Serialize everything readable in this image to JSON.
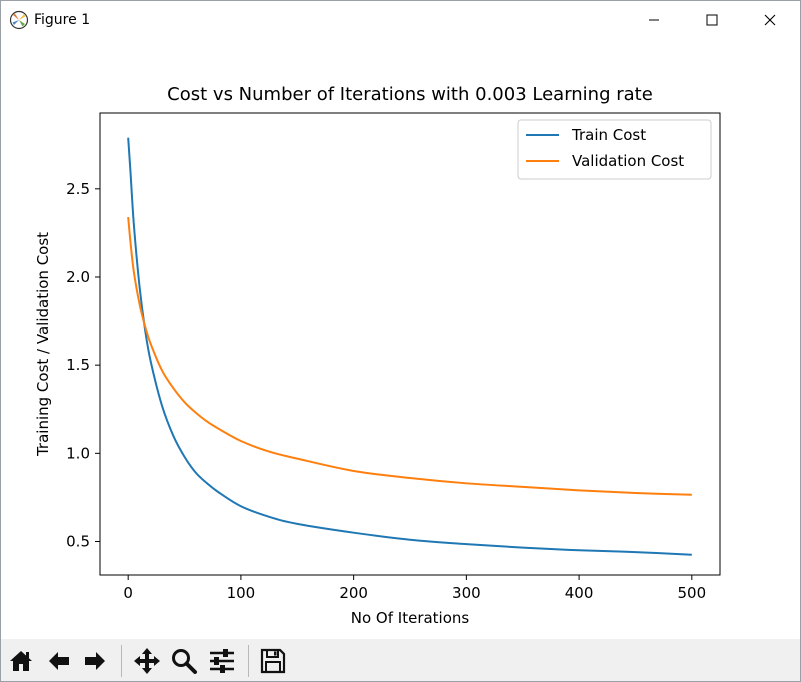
{
  "window": {
    "title": "Figure 1",
    "controls": [
      "minimize-icon",
      "maximize-icon",
      "close-icon"
    ]
  },
  "toolbar": {
    "buttons": [
      "home-icon",
      "back-icon",
      "forward-icon",
      "pan-icon",
      "zoom-icon",
      "configure-subplots-icon",
      "save-icon"
    ]
  },
  "chart_data": {
    "type": "line",
    "title": "Cost vs Number of Iterations with 0.003 Learning rate",
    "xlabel": "No Of Iterations",
    "ylabel": "Training Cost / Validation Cost",
    "xlim": [
      -25,
      525
    ],
    "ylim": [
      0.31,
      2.93
    ],
    "xticks": [
      0,
      100,
      200,
      300,
      400,
      500
    ],
    "xtick_labels": [
      "0",
      "100",
      "200",
      "300",
      "400",
      "500"
    ],
    "yticks": [
      0.5,
      1.0,
      1.5,
      2.0,
      2.5
    ],
    "ytick_labels": [
      "0.5",
      "1.0",
      "1.5",
      "2.0",
      "2.5"
    ],
    "grid": false,
    "legend_position": "top-right",
    "series": [
      {
        "name": "Train Cost",
        "color": "#1f77b4",
        "x": [
          0,
          2,
          5,
          10,
          15,
          20,
          30,
          40,
          50,
          60,
          70,
          80,
          100,
          125,
          150,
          200,
          250,
          300,
          350,
          400,
          450,
          500
        ],
        "y": [
          2.79,
          2.6,
          2.3,
          1.95,
          1.7,
          1.52,
          1.27,
          1.1,
          0.98,
          0.89,
          0.83,
          0.78,
          0.7,
          0.64,
          0.6,
          0.55,
          0.51,
          0.485,
          0.465,
          0.45,
          0.44,
          0.425
        ]
      },
      {
        "name": "Validation Cost",
        "color": "#ff7f0e",
        "x": [
          0,
          2,
          5,
          10,
          15,
          20,
          30,
          40,
          50,
          60,
          70,
          80,
          100,
          125,
          150,
          200,
          250,
          300,
          350,
          400,
          450,
          500
        ],
        "y": [
          2.34,
          2.2,
          2.03,
          1.85,
          1.72,
          1.62,
          1.47,
          1.37,
          1.29,
          1.23,
          1.18,
          1.14,
          1.07,
          1.01,
          0.97,
          0.9,
          0.86,
          0.83,
          0.81,
          0.79,
          0.775,
          0.765
        ]
      }
    ]
  }
}
